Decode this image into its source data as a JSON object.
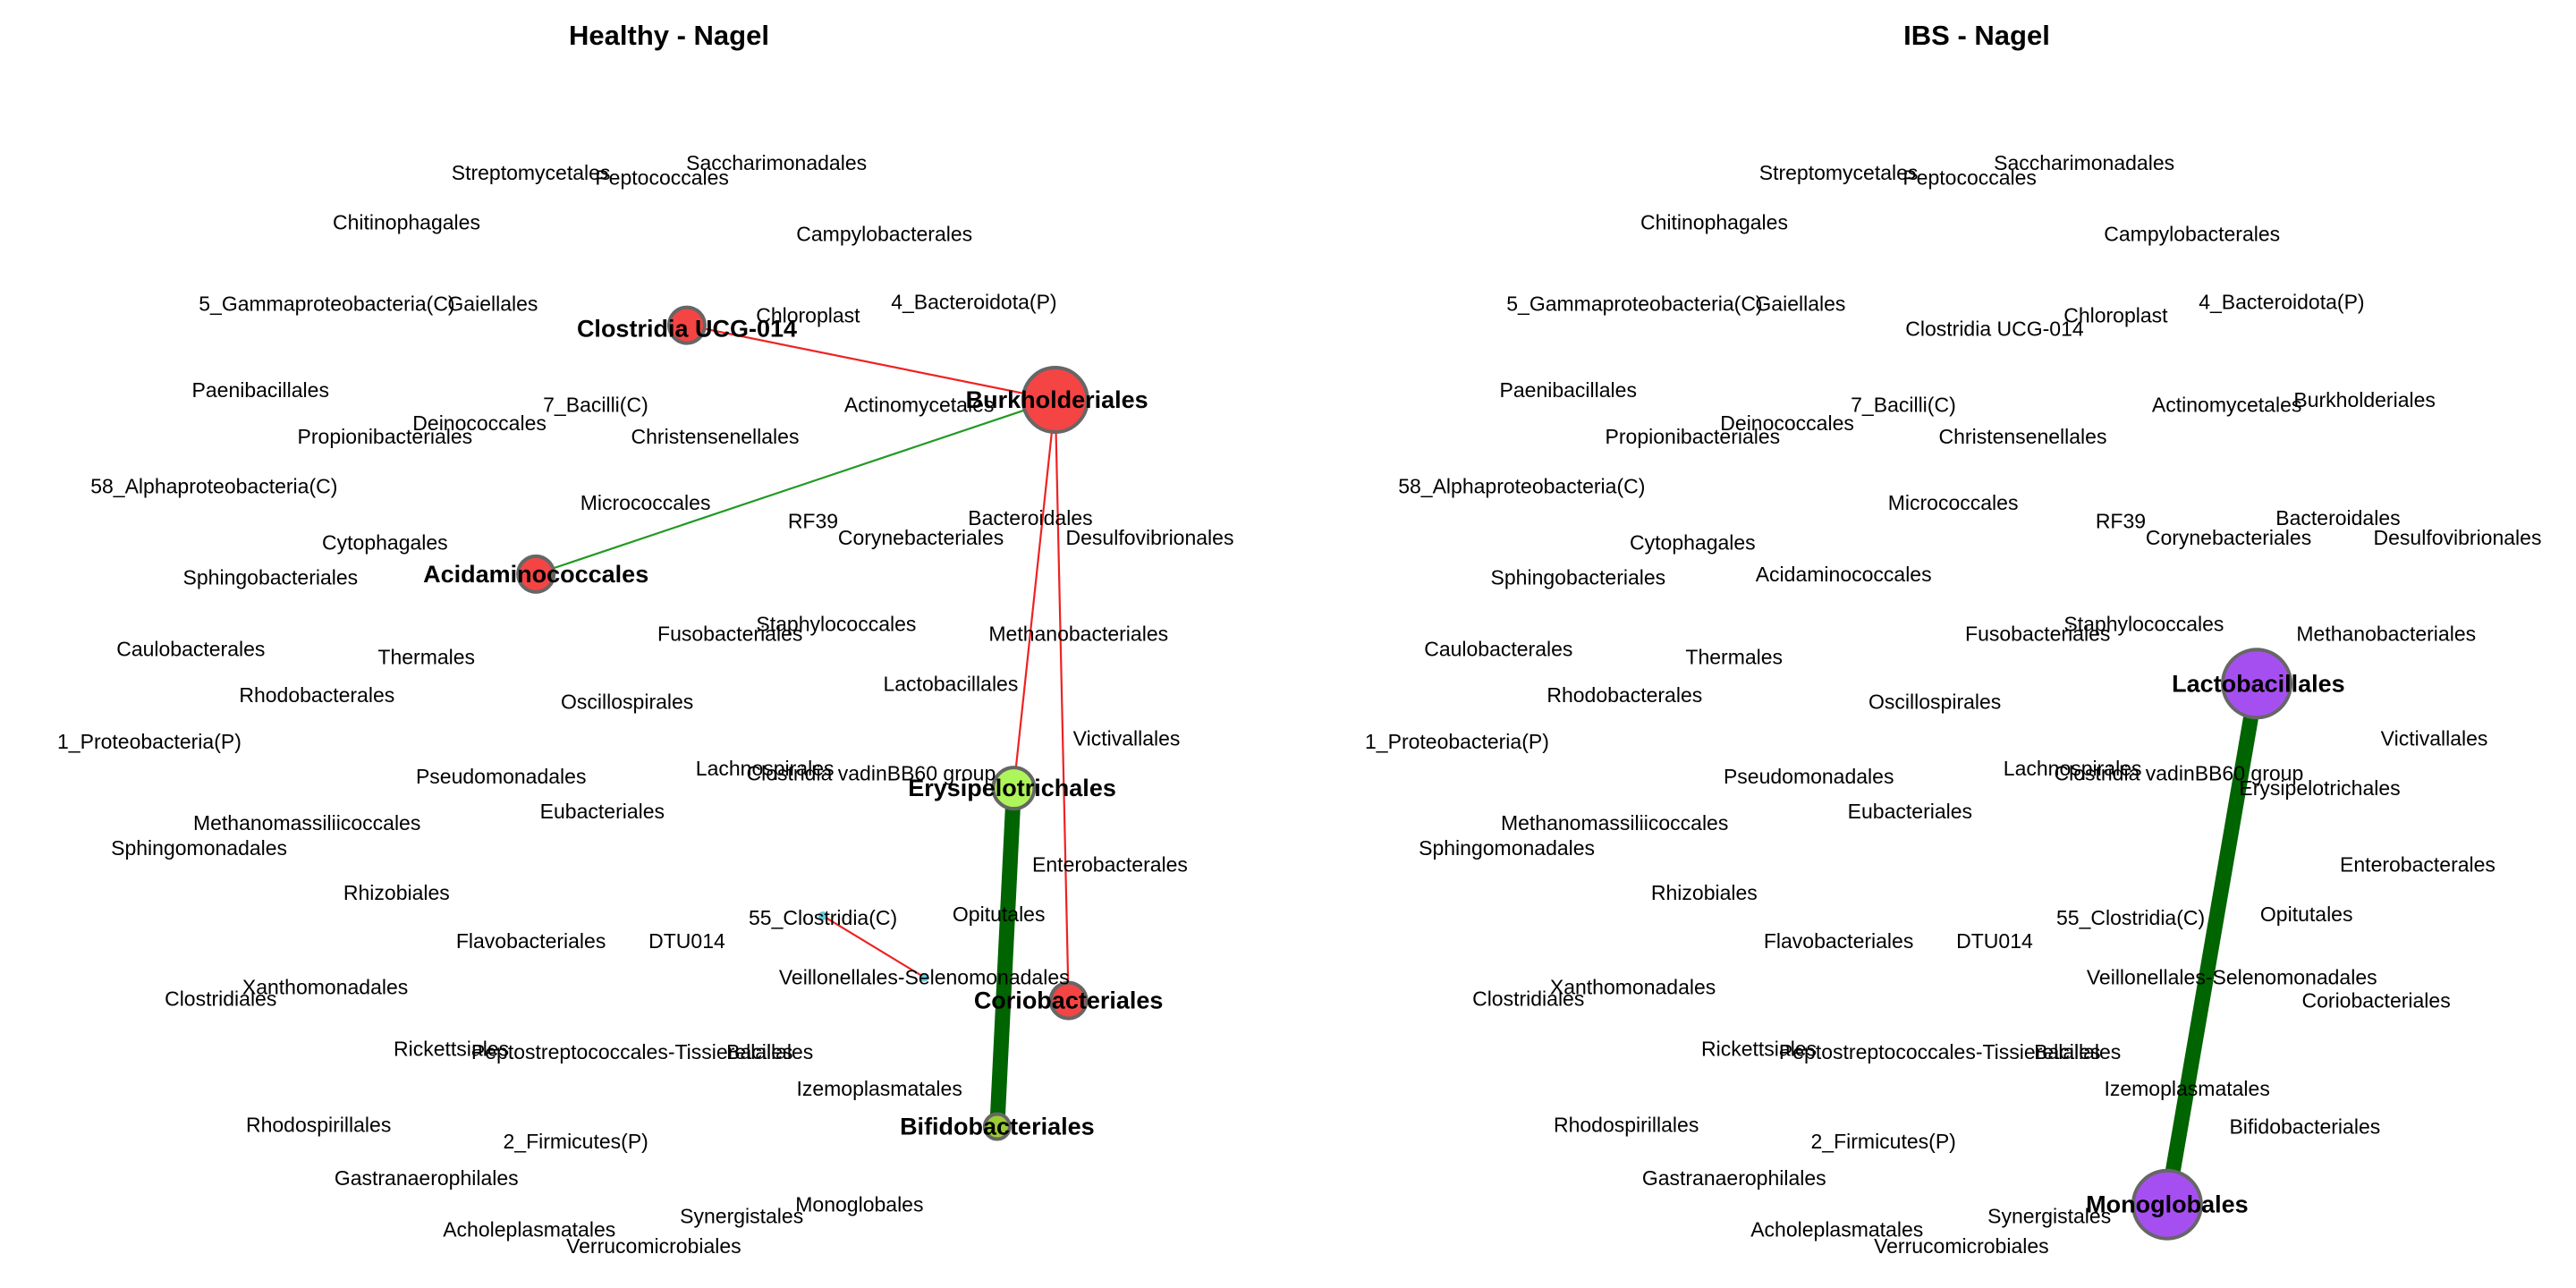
{
  "figure": {
    "panels": [
      {
        "title": "Healthy - Nagel",
        "labels": [
          "Streptomycetales",
          "Peptococcales",
          "Saccharimonadales",
          "Chitinophagales",
          "Campylobacterales",
          "5_Gammaproteobacteria(C)",
          "Gaiellales",
          "Clostridia UCG-014",
          "Chloroplast",
          "4_Bacteroidota(P)",
          "Paenibacillales",
          "Deinococcales",
          "7_Bacilli(C)",
          "Actinomycetales",
          "Burkholderiales",
          "Propionibacteriales",
          "Christensenellales",
          "58_Alphaproteobacteria(C)",
          "Micrococcales",
          "RF39",
          "Bacteroidales",
          "Corynebacteriales",
          "Desulfovibrionales",
          "Cytophagales",
          "Sphingobacteriales",
          "Acidaminococcales",
          "Staphylococcales",
          "Fusobacteriales",
          "Methanobacteriales",
          "Caulobacterales",
          "Thermales",
          "Rhodobacterales",
          "Oscillospirales",
          "Lactobacillales",
          "1_Proteobacteria(P)",
          "Victivallales",
          "Lachnospirales",
          "Clostridia vadinBB60 group",
          "Pseudomonadales",
          "Erysipelotrichales",
          "Methanomassiliicoccales",
          "Eubacteriales",
          "Sphingomonadales",
          "Enterobacterales",
          "Rhizobiales",
          "55_Clostridia(C)",
          "Opitutales",
          "Flavobacteriales",
          "DTU014",
          "Veillonellales-Selenomonadales",
          "Xanthomonadales",
          "Coriobacteriales",
          "Clostridiales",
          "Rickettsiales",
          "Peptostreptococcales-Tissierellales",
          "Bacillales",
          "Izemoplasmatales",
          "Rhodospirillales",
          "Bifidobacteriales",
          "2_Firmicutes(P)",
          "Gastranaerophilales",
          "Monoglobales",
          "Synergistales",
          "Acholeplasmatales",
          "Verrucomicrobiales"
        ],
        "bold_labels": [
          "Clostridia UCG-014",
          "Burkholderiales",
          "Acidaminococcales",
          "Erysipelotrichales",
          "Coriobacteriales",
          "Bifidobacteriales"
        ],
        "nodes": [
          {
            "name": "Clostridia UCG-014",
            "color": "#f44444",
            "size": 1
          },
          {
            "name": "Burkholderiales",
            "color": "#f44444",
            "size": 3
          },
          {
            "name": "Acidaminococcales",
            "color": "#f44444",
            "size": 1
          },
          {
            "name": "Erysipelotrichales",
            "color": "#adf55a",
            "size": 1.2
          },
          {
            "name": "Coriobacteriales",
            "color": "#f44444",
            "size": 1
          },
          {
            "name": "Bifidobacteriales",
            "color": "#9acd32",
            "size": 0.7
          },
          {
            "name": "55_Clostridia(C)",
            "color": "#66ccdd",
            "size": 0.2
          },
          {
            "name": "Veillonellales-Selenomonadales",
            "color": "#66ccdd",
            "size": 0.2
          }
        ],
        "edges": [
          {
            "from": "Clostridia UCG-014",
            "to": "Burkholderiales",
            "color": "#ee2222",
            "weight": 1
          },
          {
            "from": "Burkholderiales",
            "to": "Acidaminococcales",
            "color": "#229922",
            "weight": 1
          },
          {
            "from": "Burkholderiales",
            "to": "Erysipelotrichales",
            "color": "#ee2222",
            "weight": 1
          },
          {
            "from": "Burkholderiales",
            "to": "Coriobacteriales",
            "color": "#ee2222",
            "weight": 1
          },
          {
            "from": "Erysipelotrichales",
            "to": "Bifidobacteriales",
            "color": "#006400",
            "weight": 9
          },
          {
            "from": "55_Clostridia(C)",
            "to": "Veillonellales-Selenomonadales",
            "color": "#ee2222",
            "weight": 1
          }
        ]
      },
      {
        "title": "IBS - Nagel",
        "labels": [
          "Streptomycetales",
          "Peptococcales",
          "Saccharimonadales",
          "Chitinophagales",
          "Campylobacterales",
          "5_Gammaproteobacteria(C)",
          "Gaiellales",
          "Clostridia UCG-014",
          "Chloroplast",
          "4_Bacteroidota(P)",
          "Paenibacillales",
          "Deinococcales",
          "7_Bacilli(C)",
          "Actinomycetales",
          "Burkholderiales",
          "Propionibacteriales",
          "Christensenellales",
          "58_Alphaproteobacteria(C)",
          "Micrococcales",
          "RF39",
          "Bacteroidales",
          "Corynebacteriales",
          "Desulfovibrionales",
          "Cytophagales",
          "Sphingobacteriales",
          "Acidaminococcales",
          "Staphylococcales",
          "Fusobacteriales",
          "Methanobacteriales",
          "Caulobacterales",
          "Thermales",
          "Rhodobacterales",
          "Oscillospirales",
          "Lactobacillales",
          "1_Proteobacteria(P)",
          "Victivallales",
          "Lachnospirales",
          "Clostridia vadinBB60 group",
          "Pseudomonadales",
          "Erysipelotrichales",
          "Methanomassiliicoccales",
          "Eubacteriales",
          "Sphingomonadales",
          "Enterobacterales",
          "Rhizobiales",
          "55_Clostridia(C)",
          "Opitutales",
          "Flavobacteriales",
          "DTU014",
          "Veillonellales-Selenomonadales",
          "Xanthomonadales",
          "Coriobacteriales",
          "Clostridiales",
          "Rickettsiales",
          "Peptostreptococcales-Tissierellales",
          "Bacillales",
          "Izemoplasmatales",
          "Rhodospirillales",
          "Bifidobacteriales",
          "2_Firmicutes(P)",
          "Gastranaerophilales",
          "Monoglobales",
          "Synergistales",
          "Acholeplasmatales",
          "Verrucomicrobiales"
        ],
        "bold_labels": [
          "Lactobacillales",
          "Monoglobales"
        ],
        "nodes": [
          {
            "name": "Lactobacillales",
            "color": "#a64ff0",
            "size": 2
          },
          {
            "name": "Monoglobales",
            "color": "#a64ff0",
            "size": 2
          }
        ],
        "edges": [
          {
            "from": "Lactobacillales",
            "to": "Monoglobales",
            "color": "#006400",
            "weight": 9
          }
        ]
      }
    ]
  }
}
